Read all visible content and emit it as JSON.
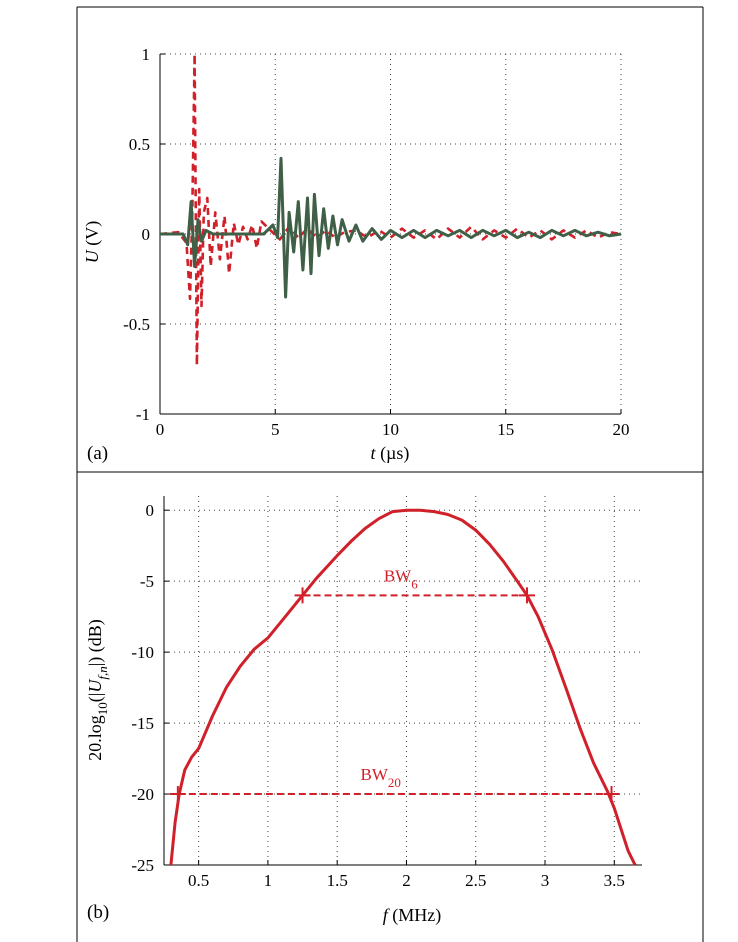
{
  "chart_data": [
    {
      "panel_label": "(a)",
      "type": "line",
      "xlabel": {
        "var": "t",
        "unit": "(µs)"
      },
      "ylabel": {
        "var": "U",
        "unit": "(V)"
      },
      "xlim": [
        0,
        20
      ],
      "ylim": [
        -1,
        1
      ],
      "xticks": [
        0,
        5,
        10,
        15,
        20
      ],
      "xtick_labels": [
        "0",
        "5",
        "10",
        "15",
        "20"
      ],
      "yticks": [
        -1,
        -0.5,
        0,
        0.5,
        1
      ],
      "ytick_labels": [
        "-1",
        "-0.5",
        "0",
        "0.5",
        "1"
      ],
      "grid": true,
      "series": [
        {
          "style": "dashed",
          "color": "#d0202a",
          "x": [
            0,
            0.8,
            1.15,
            1.3,
            1.4,
            1.5,
            1.6,
            1.7,
            1.8,
            1.9,
            2.05,
            2.2,
            2.4,
            2.6,
            2.8,
            3.0,
            3.2,
            3.4,
            3.6,
            3.8,
            4.0,
            4.2,
            4.4,
            4.8,
            5.2,
            5.6,
            6.0,
            6.4,
            6.8,
            7.2,
            7.6,
            8.0,
            8.5,
            9.0,
            9.5,
            10.0,
            10.5,
            11.0,
            11.5,
            12.0,
            12.5,
            13.0,
            13.5,
            14.0,
            14.5,
            15.0,
            15.5,
            16.0,
            16.5,
            17.0,
            17.5,
            18.0,
            18.5,
            19.0,
            19.5,
            20.0
          ],
          "y": [
            0.0,
            0.01,
            -0.05,
            -0.36,
            0.12,
            1.0,
            -0.73,
            0.25,
            -0.4,
            0.12,
            0.2,
            -0.18,
            0.12,
            -0.14,
            0.1,
            -0.22,
            0.06,
            -0.06,
            0.04,
            -0.03,
            0.05,
            -0.08,
            0.07,
            0.02,
            -0.03,
            0.04,
            -0.02,
            0.03,
            -0.02,
            0.02,
            -0.02,
            0.01,
            0.02,
            -0.02,
            0.02,
            -0.02,
            0.03,
            -0.02,
            0.02,
            -0.03,
            0.03,
            -0.02,
            0.04,
            -0.03,
            0.02,
            -0.02,
            0.03,
            -0.02,
            0.02,
            -0.03,
            0.02,
            -0.02,
            0.02,
            -0.02,
            0.01,
            0.0
          ]
        },
        {
          "style": "solid",
          "color": "#3f5f47",
          "x": [
            0,
            1.0,
            1.2,
            1.35,
            1.5,
            1.65,
            1.8,
            2.0,
            2.3,
            4.5,
            4.9,
            5.1,
            5.25,
            5.45,
            5.6,
            5.8,
            6.0,
            6.2,
            6.4,
            6.55,
            6.7,
            6.9,
            7.1,
            7.3,
            7.5,
            7.7,
            7.9,
            8.2,
            8.5,
            8.8,
            9.2,
            9.6,
            10.0,
            10.5,
            11.0,
            11.5,
            12.0,
            12.5,
            13.0,
            13.5,
            14.0,
            14.5,
            15.0,
            15.5,
            16.0,
            16.5,
            17.0,
            17.5,
            18.0,
            18.5,
            19.0,
            19.5,
            20.0
          ],
          "y": [
            0.0,
            0.0,
            -0.06,
            0.18,
            -0.18,
            0.08,
            -0.04,
            0.02,
            0.0,
            0.0,
            0.05,
            -0.02,
            0.42,
            -0.35,
            0.12,
            -0.1,
            0.18,
            -0.2,
            0.2,
            -0.22,
            0.22,
            -0.12,
            0.14,
            -0.08,
            0.1,
            -0.06,
            0.08,
            -0.04,
            0.05,
            -0.04,
            0.03,
            -0.03,
            0.02,
            -0.02,
            0.02,
            -0.02,
            0.02,
            -0.01,
            0.02,
            -0.02,
            0.02,
            -0.01,
            0.02,
            -0.02,
            0.01,
            -0.02,
            0.02,
            -0.01,
            0.02,
            -0.01,
            0.01,
            -0.01,
            0.0
          ]
        }
      ]
    },
    {
      "panel_label": "(b)",
      "type": "line",
      "xlabel": {
        "var": "f",
        "unit": "(MHz)"
      },
      "ylabel": {
        "prefix": "20.log",
        "sub": "10",
        "open": "(|",
        "var": "U",
        "var_sub": "f,n",
        "close": "|) (dB)"
      },
      "xlim": [
        0.25,
        3.7
      ],
      "ylim": [
        -25,
        1
      ],
      "xticks": [
        0.5,
        1,
        1.5,
        2,
        2.5,
        3,
        3.5
      ],
      "xtick_labels": [
        "0.5",
        "1",
        "1.5",
        "2",
        "2.5",
        "3",
        "3.5"
      ],
      "yticks": [
        -25,
        -20,
        -15,
        -10,
        -5,
        0
      ],
      "ytick_labels": [
        "-25",
        "-20",
        "-15",
        "-10",
        "-5",
        "0"
      ],
      "grid": true,
      "series": [
        {
          "style": "solid",
          "color": "#d0202a",
          "x": [
            0.3,
            0.33,
            0.36,
            0.4,
            0.45,
            0.5,
            0.6,
            0.7,
            0.8,
            0.9,
            1.0,
            1.1,
            1.2,
            1.25,
            1.35,
            1.5,
            1.6,
            1.7,
            1.8,
            1.9,
            2.0,
            2.1,
            2.2,
            2.3,
            2.4,
            2.5,
            2.6,
            2.7,
            2.8,
            2.87,
            2.95,
            3.05,
            3.15,
            3.25,
            3.35,
            3.45,
            3.5,
            3.55,
            3.6,
            3.65
          ],
          "y": [
            -25.0,
            -22.0,
            -20.0,
            -18.3,
            -17.4,
            -16.8,
            -14.5,
            -12.5,
            -11.0,
            -9.8,
            -9.0,
            -7.8,
            -6.6,
            -6.0,
            -4.8,
            -3.2,
            -2.2,
            -1.3,
            -0.6,
            -0.1,
            0.0,
            0.0,
            -0.1,
            -0.3,
            -0.7,
            -1.4,
            -2.4,
            -3.6,
            -5.0,
            -6.0,
            -7.5,
            -9.8,
            -12.5,
            -15.3,
            -17.8,
            -19.8,
            -21.0,
            -22.5,
            -24.0,
            -25.0
          ]
        }
      ],
      "bandwidths": [
        {
          "label": "BW",
          "sub": "6",
          "level": -6,
          "f_low": 1.25,
          "f_high": 2.87
        },
        {
          "label": "BW",
          "sub": "20",
          "level": -20,
          "f_low": 0.35,
          "f_high": 3.48
        }
      ]
    }
  ]
}
